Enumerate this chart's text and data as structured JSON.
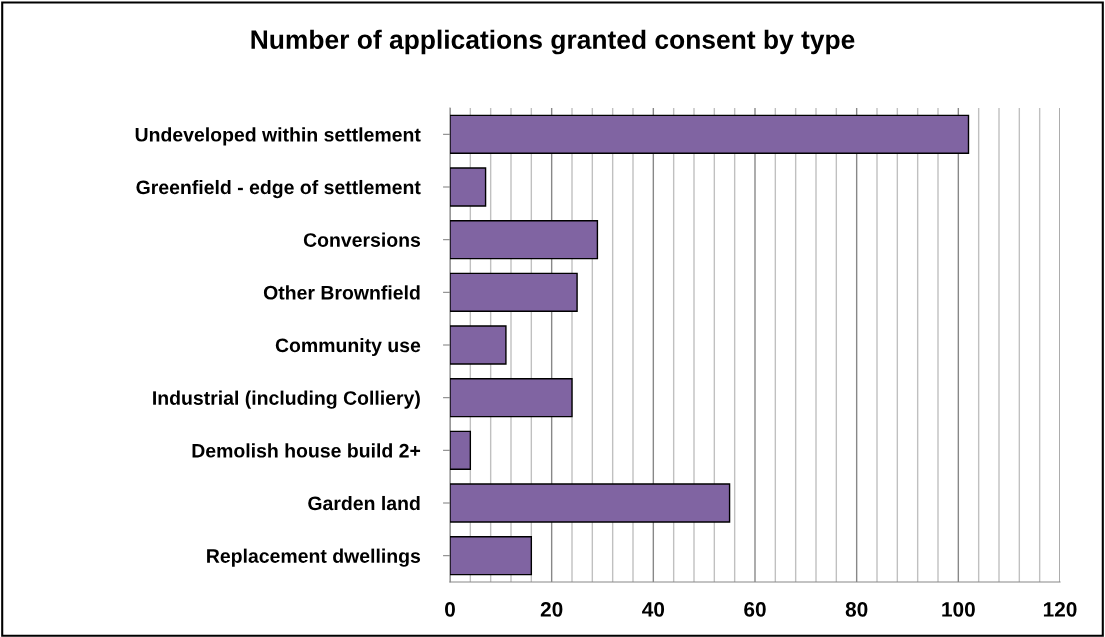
{
  "chart_data": {
    "type": "bar",
    "orientation": "horizontal",
    "title": "Number of applications granted consent by type",
    "categories": [
      "Undeveloped within settlement",
      "Greenfield - edge of settlement",
      "Conversions",
      "Other Brownfield",
      "Community use",
      "Industrial (including Colliery)",
      "Demolish house build 2+",
      "Garden land",
      "Replacement dwellings"
    ],
    "values": [
      102,
      7,
      29,
      25,
      11,
      24,
      4,
      55,
      16
    ],
    "color": "#8064a2",
    "xlim": [
      0,
      120
    ],
    "xticks": [
      0,
      {
        "value": 4,
        "label": null
      },
      {
        "value": 8,
        "label": null
      },
      {
        "value": 12,
        "label": null
      },
      {
        "value": 16,
        "label": null
      },
      20,
      {
        "value": 24,
        "label": null
      },
      {
        "value": 28,
        "label": null
      },
      {
        "value": 32,
        "label": null
      },
      {
        "value": 36,
        "label": null
      },
      40,
      {
        "value": 44,
        "label": null
      },
      {
        "value": 48,
        "label": null
      },
      {
        "value": 52,
        "label": null
      },
      {
        "value": 56,
        "label": null
      },
      60,
      {
        "value": 64,
        "label": null
      },
      {
        "value": 68,
        "label": null
      },
      {
        "value": 72,
        "label": null
      },
      {
        "value": 76,
        "label": null
      },
      80,
      {
        "value": 84,
        "label": null
      },
      {
        "value": 88,
        "label": null
      },
      {
        "value": 92,
        "label": null
      },
      {
        "value": 96,
        "label": null
      },
      100,
      {
        "value": 104,
        "label": null
      },
      {
        "value": 108,
        "label": null
      },
      {
        "value": 112,
        "label": null
      },
      {
        "value": 116,
        "label": null
      },
      120
    ],
    "grid": "x"
  }
}
